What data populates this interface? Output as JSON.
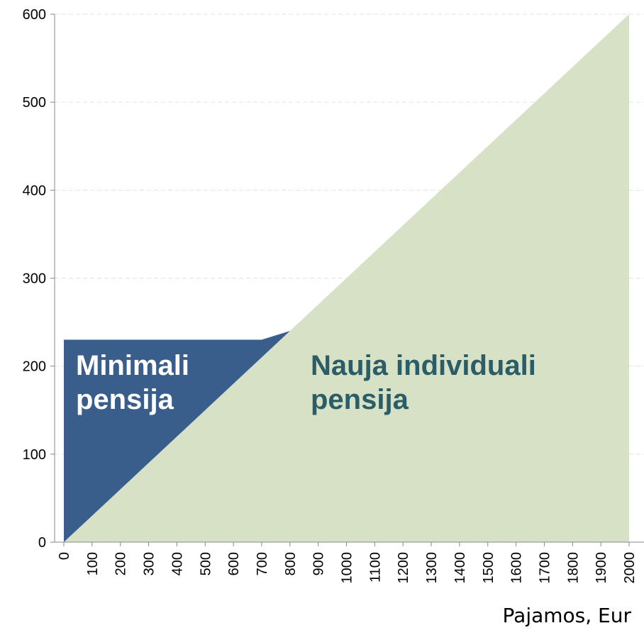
{
  "chart_data": {
    "type": "stacked_area",
    "x_label": "Pajamos, Eur",
    "x": [
      0,
      100,
      200,
      300,
      400,
      500,
      600,
      700,
      800,
      900,
      1000,
      1100,
      1200,
      1300,
      1400,
      1500,
      1600,
      1700,
      1800,
      1900,
      2000
    ],
    "xlim": [
      0,
      2000
    ],
    "series": [
      {
        "name": "Nauja individuali pensija",
        "color": "#d7e1c5",
        "label_color": "#2b5d68",
        "values": [
          0,
          30,
          60,
          90,
          120,
          150,
          180,
          210,
          240,
          270,
          300,
          330,
          360,
          390,
          420,
          450,
          480,
          510,
          540,
          570,
          600
        ]
      },
      {
        "name": "Minimali pensija",
        "color": "#3a5e8b",
        "label_color": "#ffffff",
        "values": [
          230,
          200,
          170,
          140,
          110,
          80,
          50,
          20,
          0,
          0,
          0,
          0,
          0,
          0,
          0,
          0,
          0,
          0,
          0,
          0,
          0
        ]
      }
    ],
    "ylim": [
      0,
      600
    ],
    "yticks": [
      0,
      100,
      200,
      300,
      400,
      500,
      600
    ],
    "grid": true
  }
}
